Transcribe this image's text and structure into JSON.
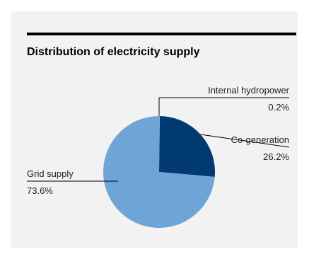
{
  "chart_data": {
    "type": "pie",
    "title": "Distribution of electricity supply",
    "slices": [
      {
        "label": "Internal hydropower",
        "value": 0.2,
        "display": "0.2%",
        "color": "#8ab4dd"
      },
      {
        "label": "Co-generation",
        "value": 26.2,
        "display": "26.2%",
        "color": "#003a70"
      },
      {
        "label": "Grid supply",
        "value": 73.6,
        "display": "73.6%",
        "color": "#6fa5d6"
      }
    ],
    "legend": "none"
  }
}
